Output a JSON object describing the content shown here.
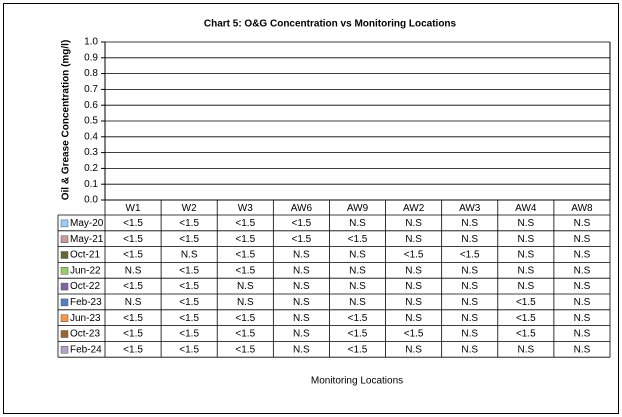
{
  "chart_data": {
    "type": "bar",
    "title": "Chart 5: O&G Concentration vs Monitoring Locations",
    "y_label": "Oil & Grease Concentration (mg/l)",
    "x_label": "Monitoring Locations",
    "categories": [
      "W1",
      "W2",
      "W3",
      "AW6",
      "AW9",
      "AW2",
      "AW3",
      "AW4",
      "AW8"
    ],
    "ylim": [
      0,
      1
    ],
    "yticks": [
      {
        "value": 0,
        "label": "0.0"
      },
      0.1,
      0.2,
      0.3,
      0.4,
      0.5,
      0.6,
      0.7,
      0.8,
      0.9,
      {
        "value": 1,
        "label": "1.0"
      }
    ],
    "grid": true,
    "series": [
      {
        "name": "May-20",
        "color": "#99ccff",
        "value_labels": [
          "<1.5",
          "<1.5",
          "<1.5",
          "<1.5",
          "N.S",
          "N.S",
          "N.S",
          "N.S",
          "N.S"
        ]
      },
      {
        "name": "May-21",
        "color": "#cc9999",
        "value_labels": [
          "<1.5",
          "<1.5",
          "<1.5",
          "<1.5",
          "<1.5",
          "N.S",
          "N.S",
          "N.S",
          "N.S"
        ]
      },
      {
        "name": "Oct-21",
        "color": "#666633",
        "value_labels": [
          "<1.5",
          "N.S",
          "<1.5",
          "N.S",
          "N.S",
          "<1.5",
          "<1.5",
          "N.S",
          "N.S"
        ]
      },
      {
        "name": "Jun-22",
        "color": "#99cc66",
        "value_labels": [
          "N.S",
          "<1.5",
          "<1.5",
          "N.S",
          "N.S",
          "N.S",
          "N.S",
          "N.S",
          "N.S"
        ]
      },
      {
        "name": "Oct-22",
        "color": "#8064a2",
        "value_labels": [
          "<1.5",
          "<1.5",
          "N.S",
          "N.S",
          "N.S",
          "N.S",
          "N.S",
          "N.S",
          "N.S"
        ]
      },
      {
        "name": "Feb-23",
        "color": "#4f81bd",
        "value_labels": [
          "N.S",
          "<1.5",
          "N.S",
          "N.S",
          "N.S",
          "N.S",
          "N.S",
          "<1.5",
          "N.S"
        ]
      },
      {
        "name": "Jun-23",
        "color": "#f79646",
        "value_labels": [
          "<1.5",
          "<1.5",
          "<1.5",
          "N.S",
          "<1.5",
          "N.S",
          "N.S",
          "<1.5",
          "N.S"
        ]
      },
      {
        "name": "Oct-23",
        "color": "#996633",
        "value_labels": [
          "<1.5",
          "<1.5",
          "<1.5",
          "N.S",
          "<1.5",
          "<1.5",
          "N.S",
          "<1.5",
          "N.S"
        ]
      },
      {
        "name": "Feb-24",
        "color": "#b3a2c7",
        "value_labels": [
          "<1.5",
          "<1.5",
          "<1.5",
          "N.S",
          "<1.5",
          "N.S",
          "N.S",
          "N.S",
          "N.S"
        ]
      }
    ]
  }
}
